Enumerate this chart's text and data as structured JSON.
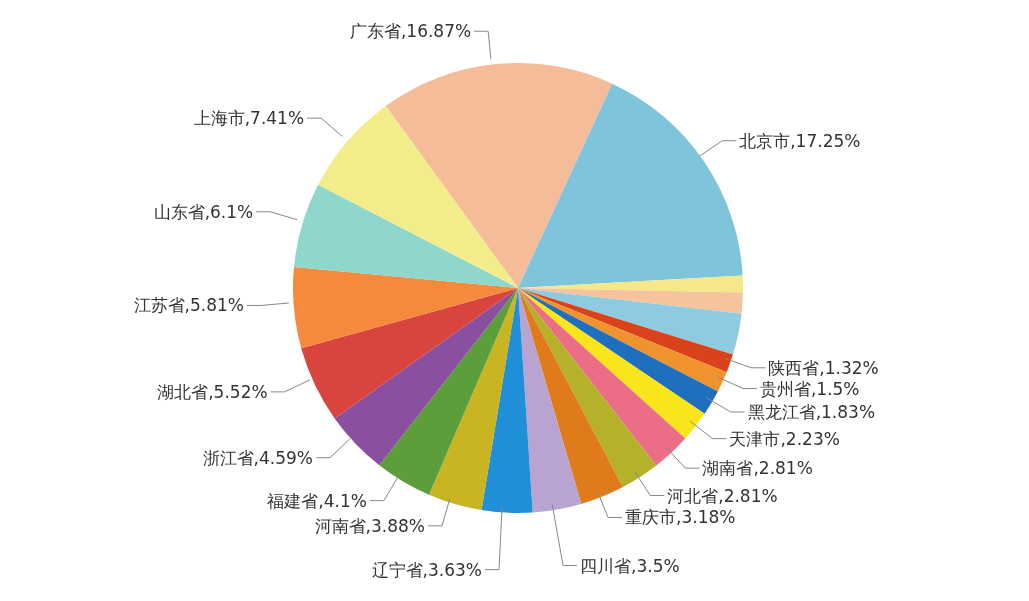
{
  "chart_data": {
    "type": "pie",
    "categories": [
      "广东省",
      "北京市",
      null,
      null,
      null,
      "陕西省",
      "贵州省",
      "黑龙江省",
      "天津市",
      "湖南省",
      "河北省",
      "重庆市",
      "四川省",
      "辽宁省",
      "河南省",
      "福建省",
      "浙江省",
      "湖北省",
      "江苏省",
      "山东省",
      "上海市"
    ],
    "values": [
      16.87,
      17.25,
      1.2,
      1.5,
      2.96,
      1.32,
      1.5,
      1.83,
      2.23,
      2.81,
      2.81,
      3.18,
      3.5,
      3.63,
      3.88,
      4.1,
      4.59,
      5.52,
      5.81,
      6.1,
      7.41
    ],
    "colors": [
      "#f4bc98",
      "#7ec4da",
      "#f5e88a",
      "#f6c49c",
      "#8fcbe0",
      "#d9431c",
      "#f0922e",
      "#1f6fbf",
      "#f8e51a",
      "#ec6d86",
      "#b5b12a",
      "#e07b1c",
      "#b9a3d0",
      "#1f8fd8",
      "#c9b422",
      "#5c9e3a",
      "#8a4f9e",
      "#d9453e",
      "#f58a3c",
      "#8fd6cc",
      "#f3ec8a"
    ],
    "value_labels": [
      ",16.87%",
      ",17.25%",
      null,
      null,
      null,
      ",1.32%",
      ",1.5%",
      ",1.83%",
      ",2.23%",
      ",2.81%",
      ",2.81%",
      ",3.18%",
      ",3.5%",
      ",3.63%",
      ",3.88%",
      ",4.1%",
      ",4.59%",
      ",5.52%",
      ",5.81%",
      ",6.1%",
      ",7.41%"
    ]
  }
}
